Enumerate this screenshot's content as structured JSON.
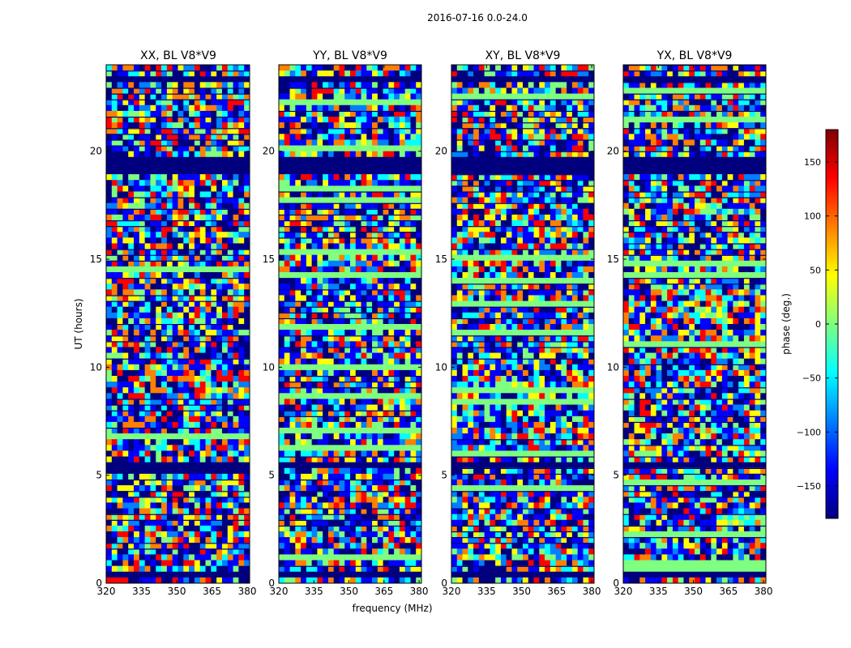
{
  "figure_title": "2016-07-16 0.0-24.0",
  "colorbar": {
    "label": "phase (deg.)",
    "range": [
      -180,
      180
    ],
    "ticks": [
      {
        "value": 150,
        "label": "150"
      },
      {
        "value": 100,
        "label": "100"
      },
      {
        "value": 50,
        "label": "50"
      },
      {
        "value": 0,
        "label": "0"
      },
      {
        "value": -50,
        "label": "−50"
      },
      {
        "value": -100,
        "label": "−100"
      },
      {
        "value": -150,
        "label": "−150"
      }
    ],
    "colormap": [
      "#00007f",
      "#0000ff",
      "#007fff",
      "#00ffff",
      "#7fff7f",
      "#ffff00",
      "#ff7f00",
      "#ff0000",
      "#7f0000"
    ]
  },
  "chart_data": [
    {
      "type": "heatmap",
      "title": "XX, BL V8*V9",
      "xlabel": "",
      "ylabel": "UT (hours)",
      "xlim": [
        320,
        381
      ],
      "ylim": [
        0,
        24
      ],
      "xticks": [
        320,
        335,
        350,
        365,
        380
      ],
      "yticks": [
        0,
        5,
        10,
        15,
        20
      ],
      "value": "phase (deg.)",
      "flagged_bands_hours": [
        [
          23.15,
          23.5
        ],
        [
          18.9,
          19.4
        ],
        [
          19.55,
          19.75
        ],
        [
          14.9,
          15.05
        ],
        [
          9.8,
          9.95
        ],
        [
          5.1,
          5.65
        ],
        [
          0.3,
          0.5
        ]
      ]
    },
    {
      "type": "heatmap",
      "title": "YY, BL V8*V9",
      "xlabel": "frequency (MHz)",
      "ylabel": "",
      "xlim": [
        320,
        381
      ],
      "ylim": [
        0,
        24
      ],
      "xticks": [
        320,
        335,
        350,
        365,
        380
      ],
      "yticks": [
        0,
        5,
        10,
        15,
        20
      ],
      "value": "phase (deg.)",
      "flagged_bands_hours": [
        [
          23.15,
          23.5
        ],
        [
          18.9,
          19.4
        ],
        [
          19.55,
          19.75
        ],
        [
          14.9,
          15.05
        ],
        [
          9.8,
          9.95
        ],
        [
          5.2,
          5.6
        ],
        [
          0.3,
          0.5
        ]
      ]
    },
    {
      "type": "heatmap",
      "title": "XY, BL V8*V9",
      "xlabel": "",
      "ylabel": "",
      "xlim": [
        320,
        381
      ],
      "ylim": [
        0,
        24
      ],
      "xticks": [
        320,
        335,
        350,
        365,
        380
      ],
      "yticks": [
        0,
        5,
        10,
        15,
        20
      ],
      "value": "phase (deg.)",
      "flagged_bands_hours": [
        [
          23.15,
          23.5
        ],
        [
          18.9,
          19.4
        ],
        [
          19.55,
          19.75
        ],
        [
          14.9,
          15.05
        ],
        [
          9.8,
          9.95
        ],
        [
          5.2,
          5.6
        ],
        [
          0.3,
          0.5
        ]
      ]
    },
    {
      "type": "heatmap",
      "title": "YX, BL V8*V9",
      "xlabel": "",
      "ylabel": "",
      "xlim": [
        320,
        381
      ],
      "ylim": [
        0,
        24
      ],
      "xticks": [
        320,
        335,
        350,
        365,
        380
      ],
      "yticks": [
        0,
        5,
        10,
        15,
        20
      ],
      "value": "phase (deg.)",
      "flagged_bands_hours": [
        [
          23.15,
          23.5
        ],
        [
          18.9,
          19.4
        ],
        [
          19.55,
          19.75
        ],
        [
          14.9,
          15.05
        ],
        [
          9.8,
          9.95
        ],
        [
          5.2,
          5.6
        ],
        [
          0.3,
          0.5
        ]
      ]
    }
  ]
}
